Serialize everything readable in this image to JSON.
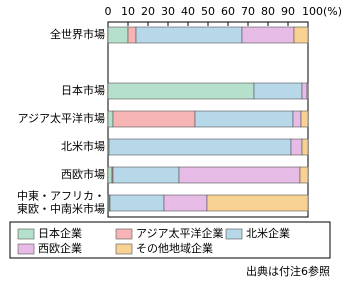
{
  "chart_data": {
    "type": "stacked_bar_horizontal",
    "categories": [
      "全世界市場",
      null,
      "日本市場",
      "アジア太平洋市場",
      "北米市場",
      "西欧市場",
      "中東・アフリカ・\n東欧・中南米市場"
    ],
    "series": [
      {
        "name": "日本企業",
        "color": "#b5e0cb",
        "values": [
          10,
          null,
          73,
          2.5,
          0.5,
          2,
          0.5
        ]
      },
      {
        "name": "アジア太平洋企業",
        "color": "#f7b4b4",
        "values": [
          4,
          null,
          0,
          41,
          0,
          0.5,
          0.5
        ]
      },
      {
        "name": "北米企業",
        "color": "#b6d8e8",
        "values": [
          53,
          null,
          24,
          49,
          91,
          33,
          27
        ]
      },
      {
        "name": "西欧企業",
        "color": "#e6bce6",
        "values": [
          26,
          null,
          2.5,
          4,
          5.5,
          60.5,
          21.5
        ]
      },
      {
        "name": "その他地域企業",
        "color": "#f8d293",
        "values": [
          7,
          null,
          0.5,
          3.5,
          3,
          4,
          50.5
        ]
      }
    ],
    "xlim": [
      0,
      100
    ],
    "xticks": [
      0,
      10,
      20,
      30,
      40,
      50,
      60,
      70,
      80,
      90,
      {
        "value": 100,
        "label": "100(%)"
      }
    ],
    "grid": false,
    "source": "出典は付注6参照"
  }
}
